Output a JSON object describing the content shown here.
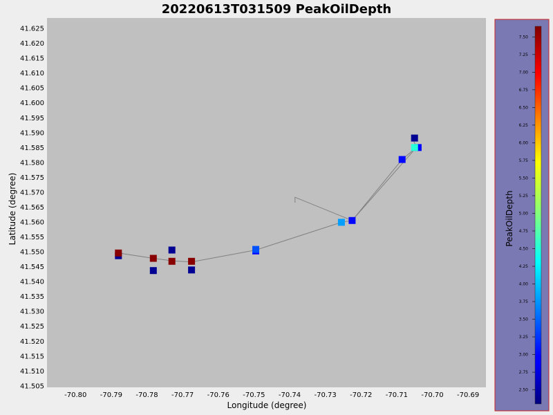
{
  "chart_data": {
    "type": "scatter",
    "title": "20220613T031509 PeakOilDepth",
    "xlabel": "Longitude (degree)",
    "ylabel": "Latitude (degree)",
    "xlim": [
      -70.808,
      -70.685
    ],
    "ylim": [
      41.5045,
      41.6285
    ],
    "x_ticks": [
      -70.8,
      -70.79,
      -70.78,
      -70.77,
      -70.76,
      -70.75,
      -70.74,
      -70.73,
      -70.72,
      -70.71,
      -70.7,
      -70.69
    ],
    "x_tick_labels": [
      "-70.80",
      "-70.79",
      "-70.78",
      "-70.77",
      "-70.76",
      "-70.75",
      "-70.74",
      "-70.73",
      "-70.72",
      "-70.71",
      "-70.70",
      "-70.69"
    ],
    "y_ticks": [
      41.505,
      41.51,
      41.515,
      41.52,
      41.525,
      41.53,
      41.535,
      41.54,
      41.545,
      41.55,
      41.555,
      41.56,
      41.565,
      41.57,
      41.575,
      41.58,
      41.585,
      41.59,
      41.595,
      41.6,
      41.605,
      41.61,
      41.615,
      41.62,
      41.625
    ],
    "y_tick_labels": [
      "41.505",
      "41.510",
      "41.515",
      "41.520",
      "41.525",
      "41.530",
      "41.535",
      "41.540",
      "41.545",
      "41.550",
      "41.555",
      "41.560",
      "41.565",
      "41.570",
      "41.575",
      "41.580",
      "41.585",
      "41.590",
      "41.595",
      "41.600",
      "41.605",
      "41.610",
      "41.615",
      "41.620",
      "41.625"
    ],
    "grid": false,
    "track": [
      [
        -70.788,
        41.5496
      ],
      [
        -70.7782,
        41.5478
      ],
      [
        -70.773,
        41.547
      ],
      [
        -70.7675,
        41.5466
      ],
      [
        -70.7495,
        41.5506
      ],
      [
        -70.7255,
        41.5599
      ],
      [
        -70.7225,
        41.5605
      ],
      [
        -70.7085,
        41.581
      ],
      [
        -70.7045,
        41.585
      ],
      [
        -70.7055,
        41.588
      ],
      [
        -70.7045,
        41.585
      ],
      [
        -70.7225,
        41.5605
      ],
      [
        -70.7385,
        41.5683
      ],
      [
        -70.7385,
        41.5665
      ]
    ],
    "points": [
      {
        "x": -70.788,
        "y": 41.5487,
        "value": 2.4
      },
      {
        "x": -70.788,
        "y": 41.5496,
        "value": 7.6
      },
      {
        "x": -70.7782,
        "y": 41.5437,
        "value": 2.4
      },
      {
        "x": -70.7782,
        "y": 41.5478,
        "value": 7.6
      },
      {
        "x": -70.773,
        "y": 41.5506,
        "value": 2.4
      },
      {
        "x": -70.773,
        "y": 41.5468,
        "value": 7.6
      },
      {
        "x": -70.7675,
        "y": 41.5439,
        "value": 2.4
      },
      {
        "x": -70.7675,
        "y": 41.5468,
        "value": 7.6
      },
      {
        "x": -70.7495,
        "y": 41.5503,
        "value": 3.0
      },
      {
        "x": -70.7495,
        "y": 41.5508,
        "value": 3.4
      },
      {
        "x": -70.7255,
        "y": 41.5599,
        "value": 3.8
      },
      {
        "x": -70.7225,
        "y": 41.5605,
        "value": 3.0
      },
      {
        "x": -70.7085,
        "y": 41.581,
        "value": 3.0
      },
      {
        "x": -70.704,
        "y": 41.585,
        "value": 3.0
      },
      {
        "x": -70.705,
        "y": 41.585,
        "value": 4.5
      },
      {
        "x": -70.705,
        "y": 41.5882,
        "value": 2.4
      }
    ],
    "colorbar": {
      "label": "PeakOilDepth",
      "min": 2.3,
      "max": 7.65,
      "ticks": [
        2.5,
        2.75,
        3.0,
        3.25,
        3.5,
        3.75,
        4.0,
        4.25,
        4.5,
        4.75,
        5.0,
        5.25,
        5.5,
        5.75,
        6.0,
        6.25,
        6.5,
        6.75,
        7.0,
        7.25,
        7.5
      ],
      "tick_labels": [
        "2.50",
        "2.75",
        "3.00",
        "3.25",
        "3.50",
        "3.75",
        "4.00",
        "4.25",
        "4.50",
        "4.75",
        "5.00",
        "5.25",
        "5.50",
        "5.75",
        "6.00",
        "6.25",
        "6.50",
        "6.75",
        "7.00",
        "7.25",
        "7.50"
      ],
      "colormap": "jet"
    }
  },
  "colors": {
    "page_background": "#eeeeee",
    "plot_background": "#c0c0c0",
    "colorbar_panel": "#7b79b3",
    "colorbar_border": "#cc2222",
    "track_line": "#808080"
  }
}
